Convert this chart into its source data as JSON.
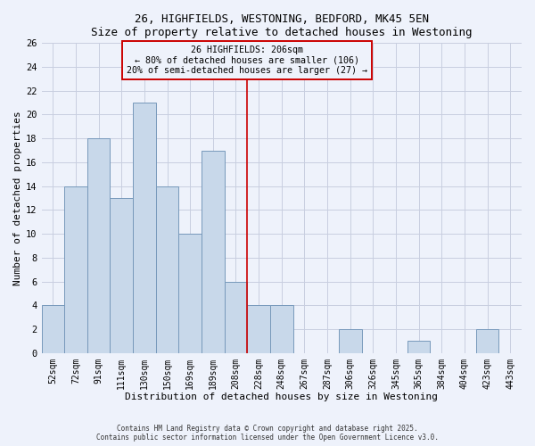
{
  "title1": "26, HIGHFIELDS, WESTONING, BEDFORD, MK45 5EN",
  "title2": "Size of property relative to detached houses in Westoning",
  "xlabel": "Distribution of detached houses by size in Westoning",
  "ylabel": "Number of detached properties",
  "bar_labels": [
    "52sqm",
    "72sqm",
    "91sqm",
    "111sqm",
    "130sqm",
    "150sqm",
    "169sqm",
    "189sqm",
    "208sqm",
    "228sqm",
    "248sqm",
    "267sqm",
    "287sqm",
    "306sqm",
    "326sqm",
    "345sqm",
    "365sqm",
    "384sqm",
    "404sqm",
    "423sqm",
    "443sqm"
  ],
  "bar_values": [
    4,
    14,
    18,
    13,
    21,
    14,
    10,
    17,
    6,
    4,
    4,
    0,
    0,
    2,
    0,
    0,
    1,
    0,
    0,
    2,
    0
  ],
  "bar_color": "#c8d8ea",
  "bar_edge_color": "#7799bb",
  "vline_index": 8,
  "vline_color": "#cc0000",
  "annotation_title": "26 HIGHFIELDS: 206sqm",
  "annotation_line1": "← 80% of detached houses are smaller (106)",
  "annotation_line2": "20% of semi-detached houses are larger (27) →",
  "annotation_box_edge": "#cc0000",
  "ylim": [
    0,
    26
  ],
  "yticks": [
    0,
    2,
    4,
    6,
    8,
    10,
    12,
    14,
    16,
    18,
    20,
    22,
    24,
    26
  ],
  "footer1": "Contains HM Land Registry data © Crown copyright and database right 2025.",
  "footer2": "Contains public sector information licensed under the Open Government Licence v3.0.",
  "bg_color": "#eef2fb",
  "grid_color": "#c8cee0",
  "font_family": "monospace"
}
